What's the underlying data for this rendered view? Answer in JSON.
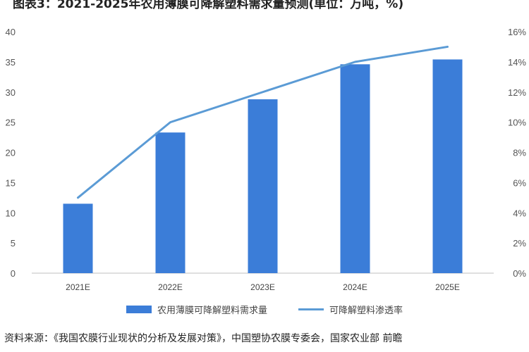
{
  "title": "图表3：2021-2025年农用薄膜可降解塑料需求量预测(单位：万吨，%)",
  "source": "资料来源：《我国农膜行业现状的分析及发展对策》，中国塑协农膜专委会，国家农业部 前瞻",
  "colors": {
    "bar": "#3b7dd8",
    "line": "#5b9bd5",
    "grid": "#d9d9d9"
  },
  "chart_data": {
    "type": "bar",
    "categories": [
      "2021E",
      "2022E",
      "2023E",
      "2024E",
      "2025E"
    ],
    "series": [
      {
        "name": "农用薄膜可降解塑料需求量",
        "kind": "bar",
        "axis": "left",
        "values": [
          11.5,
          23.3,
          28.8,
          34.6,
          35.4
        ]
      },
      {
        "name": "可降解塑料渗透率",
        "kind": "line",
        "axis": "right",
        "values": [
          5,
          10,
          12,
          14,
          15
        ]
      }
    ],
    "y_left": {
      "lim": [
        0,
        40
      ],
      "ticks": [
        "0",
        "5",
        "10",
        "15",
        "20",
        "25",
        "30",
        "35",
        "40"
      ]
    },
    "y_right": {
      "lim": [
        0,
        16
      ],
      "ticks": [
        "0%",
        "2%",
        "4%",
        "6%",
        "8%",
        "10%",
        "12%",
        "14%",
        "16%"
      ]
    },
    "grid": false,
    "legend_position": "bottom"
  }
}
